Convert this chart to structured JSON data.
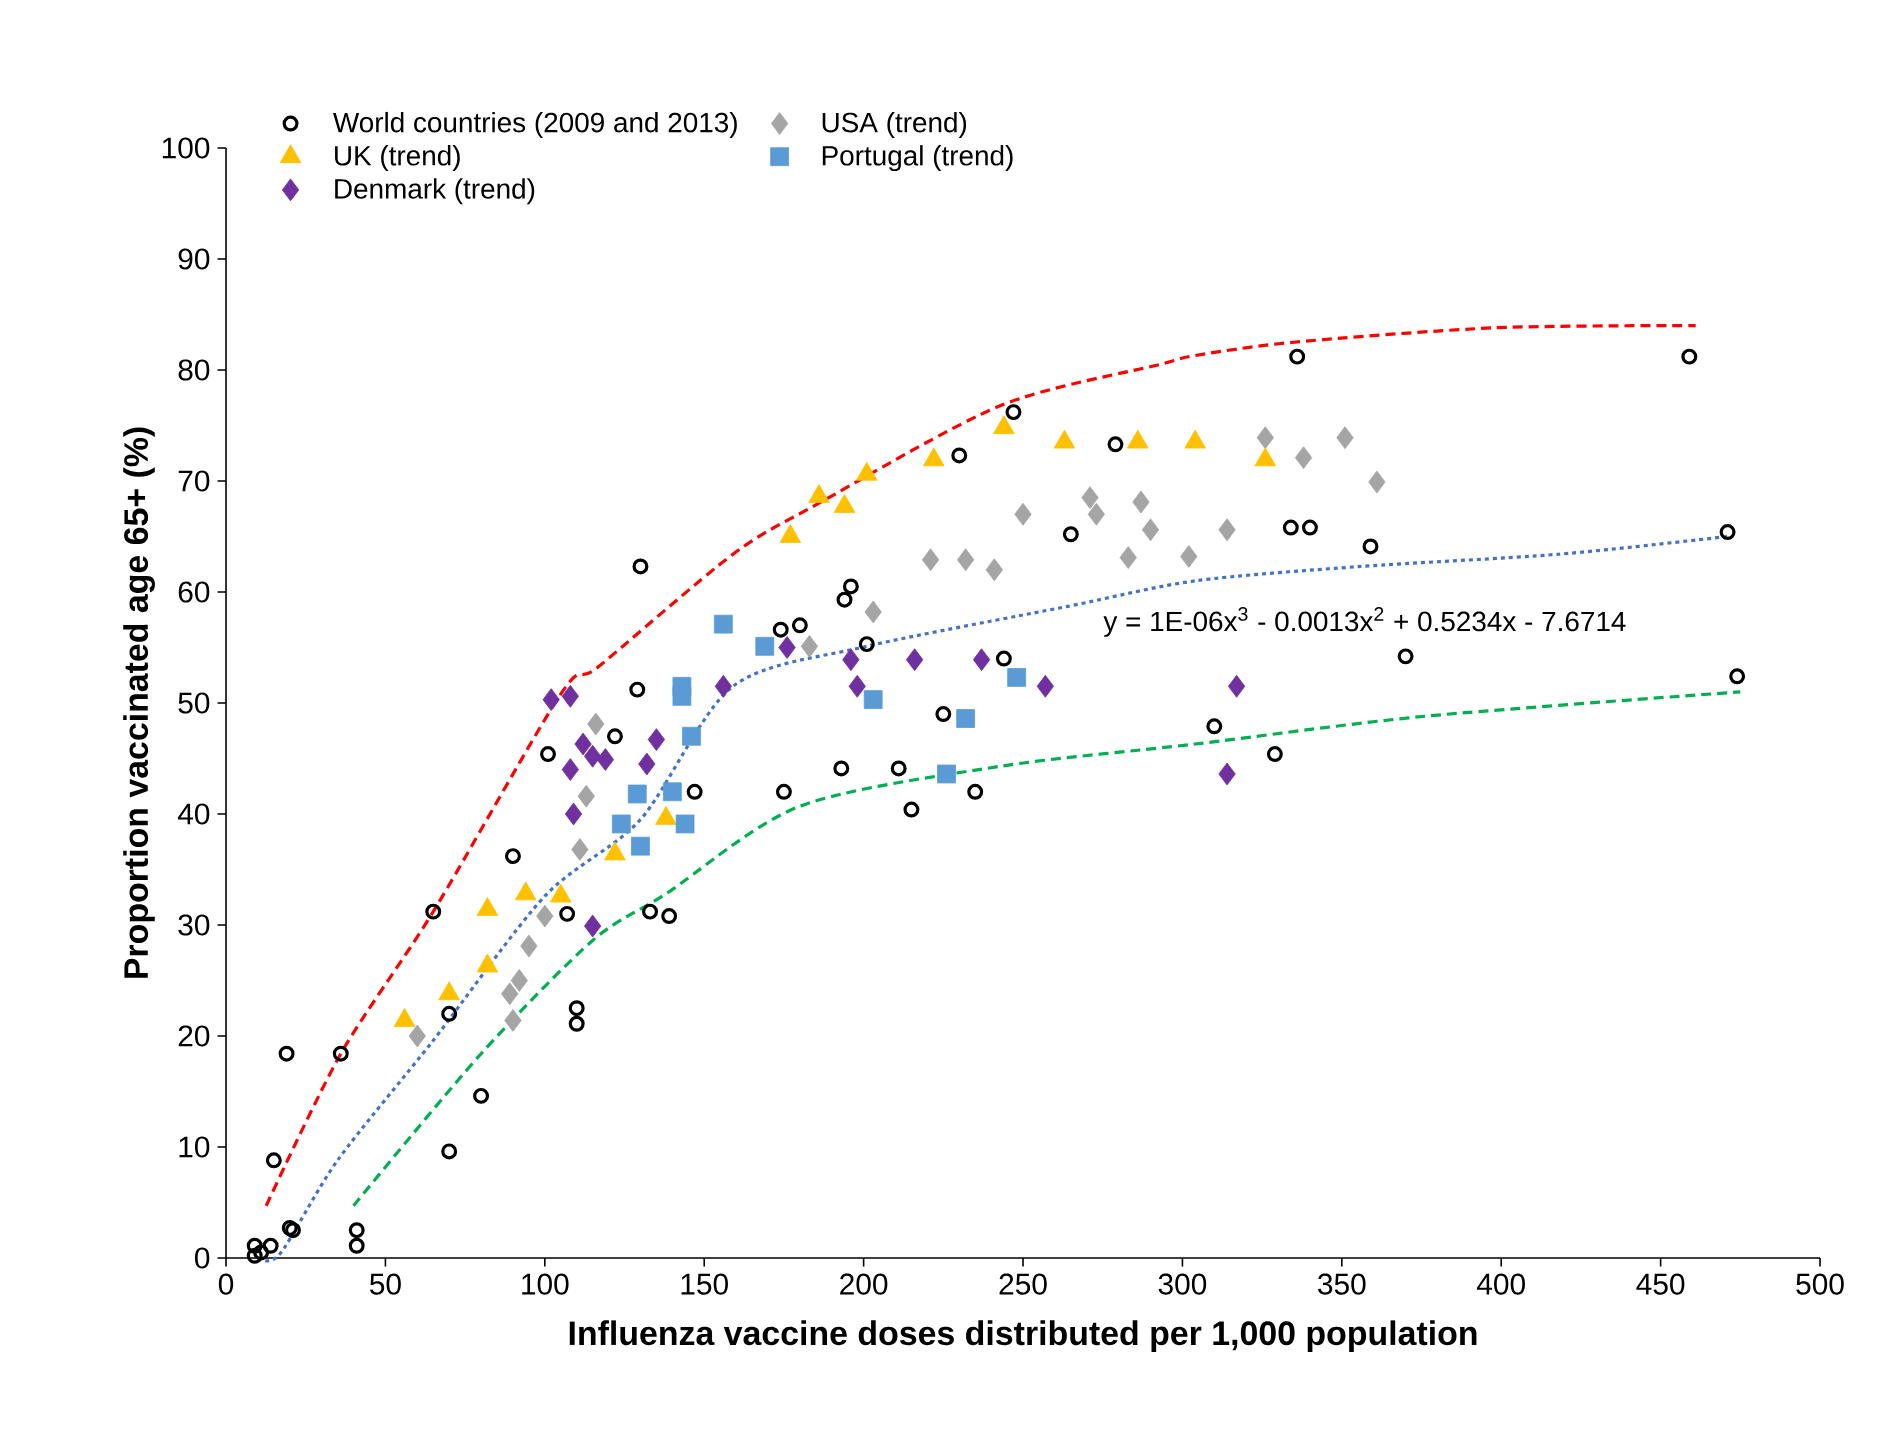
{
  "chart_data": {
    "type": "scatter",
    "xlabel": "Influenza vaccine doses distributed per 1,000 population",
    "ylabel": "Proportion vaccinated age 65+ (%)",
    "xlim": [
      0,
      500
    ],
    "ylim": [
      0,
      100
    ],
    "xticks": [
      0,
      50,
      100,
      150,
      200,
      250,
      300,
      350,
      400,
      450,
      500
    ],
    "yticks": [
      0,
      10,
      20,
      30,
      40,
      50,
      60,
      70,
      80,
      90,
      100
    ],
    "legend": "top left",
    "grid": false,
    "annotations": [
      "y = 1E-06x$^{3}$ - 0.0013x$^{2}$ + 0.5234x - 7.6714"
    ],
    "series": [
      {
        "name": "World countries (2009 and 2013)",
        "marker": "circle",
        "color": "#000000",
        "x": [
          9,
          9,
          11,
          14,
          20,
          21,
          15,
          19,
          36,
          41,
          41,
          65,
          70,
          70,
          80,
          90,
          101,
          107,
          110,
          110,
          122,
          129,
          130,
          133,
          139,
          147,
          174,
          175,
          180,
          193,
          194,
          196,
          201,
          211,
          215,
          225,
          230,
          235,
          244,
          247,
          265,
          279,
          310,
          314,
          329,
          334,
          336,
          340,
          359,
          370,
          459,
          471,
          474
        ],
        "values": [
          1.1,
          0.2,
          0.5,
          1.1,
          2.7,
          2.5,
          8.8,
          18.4,
          18.4,
          2.5,
          1.1,
          31.2,
          9.6,
          22,
          14.6,
          36.2,
          45.4,
          31,
          22.5,
          21.1,
          47,
          51.2,
          62.3,
          31.2,
          30.8,
          42,
          56.6,
          42,
          57,
          44.1,
          59.3,
          60.5,
          55.3,
          44.1,
          40.4,
          49,
          72.3,
          42,
          54,
          76.2,
          65.2,
          73.3,
          47.9,
          null,
          45.4,
          65.8,
          81.2,
          65.8,
          64.1,
          54.2,
          81.2,
          65.4,
          52.4
        ]
      },
      {
        "name": "USA (trend)",
        "marker": "diamond",
        "color": "#a5a5a5",
        "x": [
          60,
          89,
          90,
          92,
          95,
          100,
          111,
          113,
          116,
          183,
          203,
          221,
          232,
          241,
          250,
          271,
          273,
          283,
          287,
          290,
          302,
          314,
          326,
          338,
          351,
          361
        ],
        "values": [
          20,
          23.8,
          21.4,
          25,
          28.1,
          30.8,
          36.8,
          41.6,
          48.1,
          55.1,
          58.2,
          62.9,
          62.9,
          62,
          67,
          68.5,
          67,
          63.1,
          68.1,
          65.6,
          63.2,
          65.6,
          73.9,
          72.1,
          73.9,
          69.9
        ]
      },
      {
        "name": "UK (trend)",
        "marker": "triangle",
        "color": "#ffc000",
        "x": [
          56,
          70,
          82,
          82,
          94,
          105,
          122,
          130,
          138,
          177,
          186,
          194,
          201,
          222,
          244,
          263,
          286,
          304,
          326
        ],
        "values": [
          21.4,
          23.8,
          26.3,
          31.4,
          32.8,
          32.6,
          36.4,
          null,
          39.6,
          65,
          68.6,
          67.7,
          70.6,
          71.9,
          74.8,
          73.5,
          73.5,
          73.5,
          71.9
        ]
      },
      {
        "name": "Portugal (trend)",
        "marker": "square",
        "color": "#5b9bd5",
        "x": [
          124,
          129,
          130,
          140,
          143,
          143,
          144,
          146,
          156,
          169,
          203,
          226,
          232,
          248
        ],
        "values": [
          39.1,
          41.8,
          37.1,
          42,
          50.6,
          51.5,
          39.1,
          47,
          57.1,
          55.1,
          50.3,
          43.6,
          48.6,
          52.3
        ]
      },
      {
        "name": "Denmark (trend)",
        "marker": "diamond",
        "color": "#7030a0",
        "x": [
          102,
          108,
          108,
          109,
          112,
          115,
          115,
          119,
          132,
          135,
          156,
          176,
          196,
          198,
          216,
          237,
          257,
          314,
          317
        ],
        "values": [
          50.3,
          50.6,
          44,
          40,
          46.3,
          45.2,
          29.9,
          44.9,
          44.5,
          46.7,
          51.5,
          55,
          53.9,
          51.5,
          53.9,
          53.9,
          51.5,
          43.6,
          51.5
        ]
      },
      {
        "type": "line",
        "marker": "none",
        "line_style": "dashed",
        "color": "#ff0000",
        "x": [
          12.6,
          36,
          65,
          105,
          117,
          159,
          186,
          243,
          293,
          304,
          335,
          398,
          461
        ],
        "values": [
          4.7,
          18.4,
          31.2,
          50.8,
          53.3,
          63.4,
          68,
          76.8,
          80.5,
          81.3,
          82.5,
          83.8,
          84
        ]
      },
      {
        "type": "line",
        "marker": "none",
        "line_style": "dotted",
        "color": "#4472c4",
        "x": [
          10,
          17,
          35,
          65,
          100,
          130,
          159,
          201,
          264,
          304,
          356,
          418,
          471
        ],
        "values": [
          0,
          0.4,
          8.8,
          19.6,
          32.6,
          39.5,
          51.5,
          55.1,
          58.7,
          61,
          62.3,
          63.4,
          65
        ]
      },
      {
        "type": "line",
        "marker": "none",
        "line_style": "dashed",
        "color": "#00b050",
        "x": [
          40,
          80,
          115,
          138,
          180,
          243,
          304,
          376,
          475
        ],
        "values": [
          4.7,
          18.4,
          28.6,
          32.8,
          40.7,
          44.3,
          46.3,
          48.8,
          51
        ]
      }
    ]
  }
}
